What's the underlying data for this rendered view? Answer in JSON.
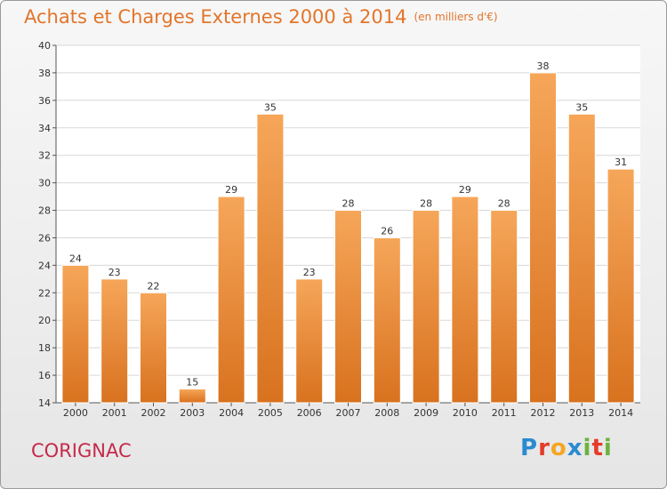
{
  "header": {
    "title": "Achats et Charges Externes 2000 à 2014",
    "unit": "(en milliers d'€)"
  },
  "footer": {
    "place": "CORIGNAC",
    "logo": "Proxiti"
  },
  "colors": {
    "bar_top": "#f6a659",
    "bar_bottom": "#d8721f",
    "title": "#e2752a",
    "place": "#c42a4a"
  },
  "chart_data": {
    "type": "bar",
    "categories": [
      "2000",
      "2001",
      "2002",
      "2003",
      "2004",
      "2005",
      "2006",
      "2007",
      "2008",
      "2009",
      "2010",
      "2011",
      "2012",
      "2013",
      "2014"
    ],
    "values": [
      24,
      23,
      22,
      15,
      29,
      35,
      23,
      28,
      26,
      28,
      29,
      28,
      38,
      35,
      31
    ],
    "ylim": [
      14,
      40
    ],
    "yticks": [
      14,
      16,
      18,
      20,
      22,
      24,
      26,
      28,
      30,
      32,
      34,
      36,
      38,
      40
    ],
    "grid": true
  }
}
